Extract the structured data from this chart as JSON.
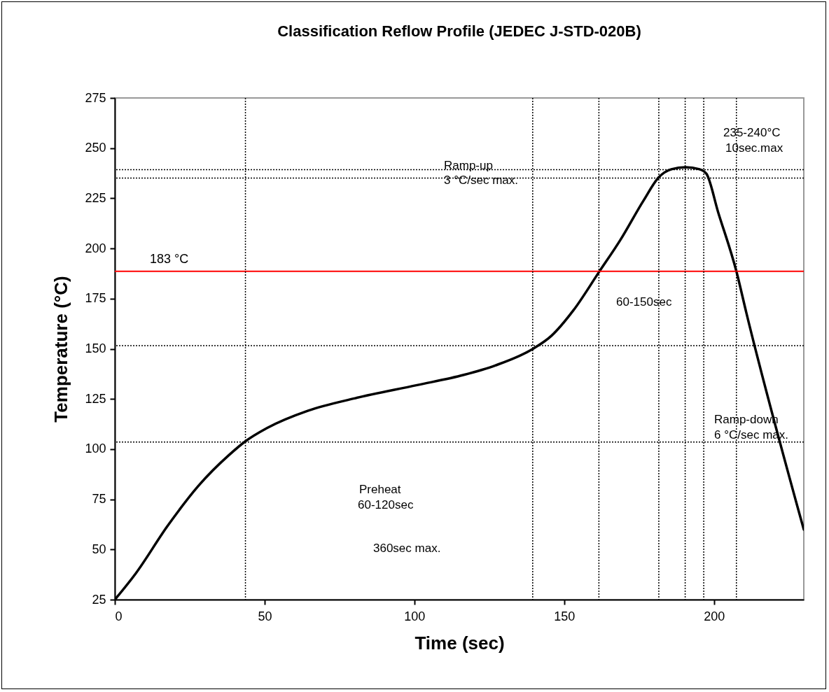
{
  "chart_data": {
    "type": "line",
    "title": "Classification Reflow Profile (JEDEC J-STD-020B)",
    "xlabel": "Time (sec)",
    "ylabel": "Temperature (°C)",
    "x": [
      0,
      7.0,
      17.5,
      27.9,
      38.3,
      43.5,
      50.8,
      64.4,
      80.0,
      100.9,
      116.5,
      127.0,
      139.5,
      145.7,
      153.1,
      161.7,
      168.7,
      176.5,
      181.6,
      185.8,
      190.5,
      195.2,
      197.5,
      201.4,
      207.5,
      210.8,
      230
    ],
    "series": [
      {
        "color": "#000000",
        "values": [
          25,
          38.1,
          61.5,
          81.7,
          97.3,
          103.8,
          110.5,
          119.1,
          125.3,
          131.9,
          137.0,
          141.7,
          149.9,
          156.4,
          169.2,
          188.4,
          204.1,
          223.9,
          235.5,
          239.5,
          240.5,
          239.5,
          237.2,
          218.1,
          188.6,
          168.1,
          59.9
        ]
      }
    ],
    "xlim": [
      0,
      230
    ],
    "xticks": [
      0,
      50,
      100,
      150,
      200
    ],
    "ylim": [
      25,
      275
    ],
    "yticks": [
      25,
      50,
      75,
      100,
      125,
      150,
      175,
      200,
      225,
      250,
      275
    ],
    "grid": false,
    "marker": "none",
    "line_style": "solid",
    "ref_lines": [
      {
        "axis": "y",
        "value": 188.6,
        "label": "183 °C",
        "color": "#ff0000",
        "line_style": "solid"
      },
      {
        "axis": "y",
        "value": 239.3,
        "color": "#000000",
        "line_style": "dotted"
      },
      {
        "axis": "y",
        "value": 235.1,
        "color": "#000000",
        "line_style": "dotted"
      },
      {
        "axis": "y",
        "value": 151.6,
        "color": "#000000",
        "line_style": "dotted"
      },
      {
        "axis": "y",
        "value": 103.5,
        "color": "#000000",
        "line_style": "dotted"
      },
      {
        "axis": "x",
        "value": 43.6,
        "color": "#000000",
        "line_style": "dotted"
      },
      {
        "axis": "x",
        "value": 139.5,
        "color": "#000000",
        "line_style": "dotted"
      },
      {
        "axis": "x",
        "value": 161.6,
        "color": "#000000",
        "line_style": "dotted"
      },
      {
        "axis": "x",
        "value": 181.6,
        "color": "#000000",
        "line_style": "dotted"
      },
      {
        "axis": "x",
        "value": 190.4,
        "color": "#000000",
        "line_style": "dotted"
      },
      {
        "axis": "x",
        "value": 196.6,
        "color": "#000000",
        "line_style": "dotted"
      },
      {
        "axis": "x",
        "value": 207.5,
        "color": "#000000",
        "line_style": "dotted"
      }
    ],
    "annotations": [
      "235-240°C",
      "10sec.max",
      "Ramp-up",
      "3 °C/sec max.",
      "60-150sec",
      "Ramp-down",
      "6 °C/sec max.",
      "Preheat",
      "60-120sec",
      "360sec max."
    ]
  }
}
